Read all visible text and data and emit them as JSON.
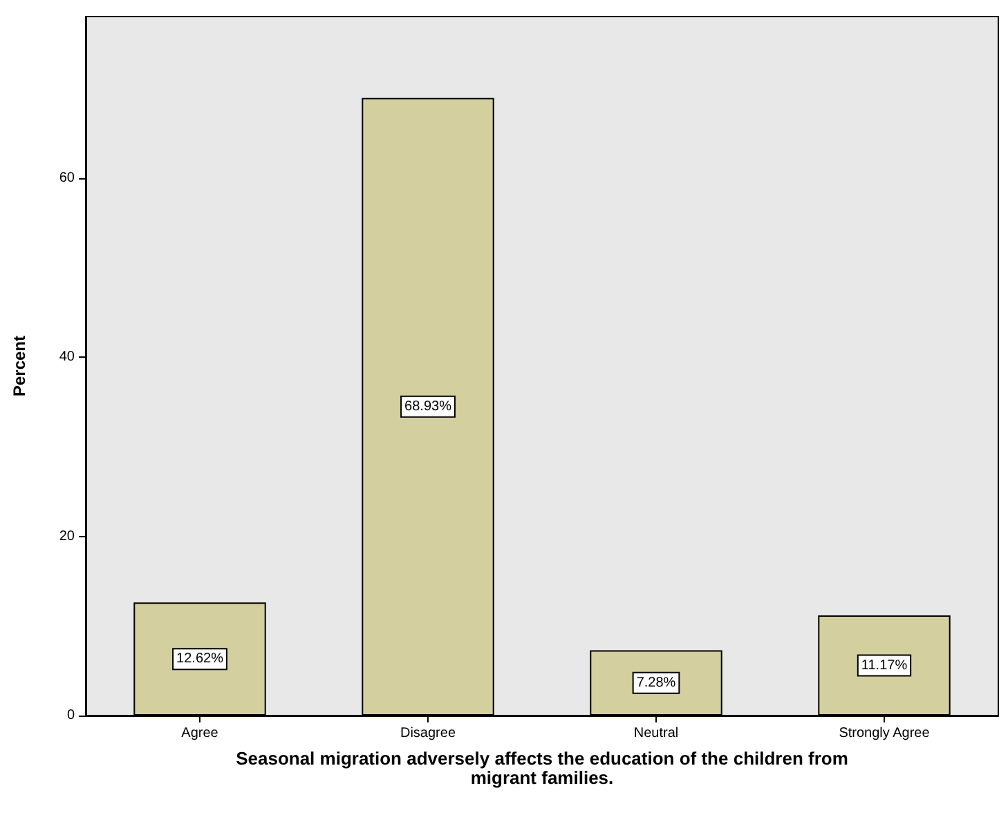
{
  "chart_data": {
    "type": "bar",
    "xlabel": "Seasonal migration adversely affects the education of the children from\nmigrant families.",
    "ylabel": "Percent",
    "categories": [
      "Agree",
      "Disagree",
      "Neutral",
      "Strongly Agree"
    ],
    "values": [
      12.62,
      68.93,
      7.28,
      11.17
    ],
    "value_labels": [
      "12.62%",
      "68.93%",
      "7.28%",
      "11.17%"
    ],
    "color": "#d3cf9e",
    "ylim": [
      0,
      78
    ],
    "yticks": [
      0,
      20,
      40,
      60
    ],
    "grid": false
  }
}
